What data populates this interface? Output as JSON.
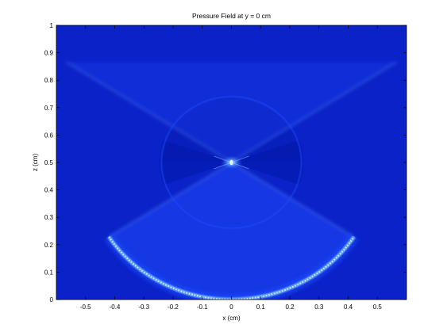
{
  "chart_data": {
    "type": "heatmap",
    "title": "Pressure Field at y = 0 cm",
    "xlabel": "x (cm)",
    "ylabel": "z (cm)",
    "xlim": [
      -0.6,
      0.6
    ],
    "ylim": [
      0,
      1
    ],
    "xticks": [
      -0.5,
      -0.4,
      -0.3,
      -0.2,
      -0.1,
      0,
      0.1,
      0.2,
      0.3,
      0.4,
      0.5
    ],
    "xtick_labels": [
      "-0.5",
      "-0.4",
      "-0.3",
      "-0.2",
      "-0.1",
      "0",
      "0.1",
      "0.2",
      "0.3",
      "0.4",
      "0.5"
    ],
    "yticks": [
      0,
      0.1,
      0.2,
      0.3,
      0.4,
      0.5,
      0.6,
      0.7,
      0.8,
      0.9,
      1
    ],
    "ytick_labels": [
      "0",
      "0.1",
      "0.2",
      "0.3",
      "0.4",
      "0.5",
      "0.6",
      "0.7",
      "0.8",
      "0.9",
      "1"
    ],
    "grid": false,
    "colormap": {
      "background": "#0b22c8",
      "shadow": "#0418a8",
      "mid": "#1f4cff",
      "high": "#6fb4ff",
      "peak": "#eaffff"
    },
    "features": {
      "focal_point": {
        "x": 0,
        "z": 0.5
      },
      "transducer_arc": {
        "center_x": 0,
        "center_z": 0.5,
        "radius": 0.5,
        "x_range": [
          -0.42,
          0.42
        ]
      },
      "focal_circle": {
        "center_x": 0,
        "center_z": 0.5,
        "radius": 0.24
      }
    }
  }
}
